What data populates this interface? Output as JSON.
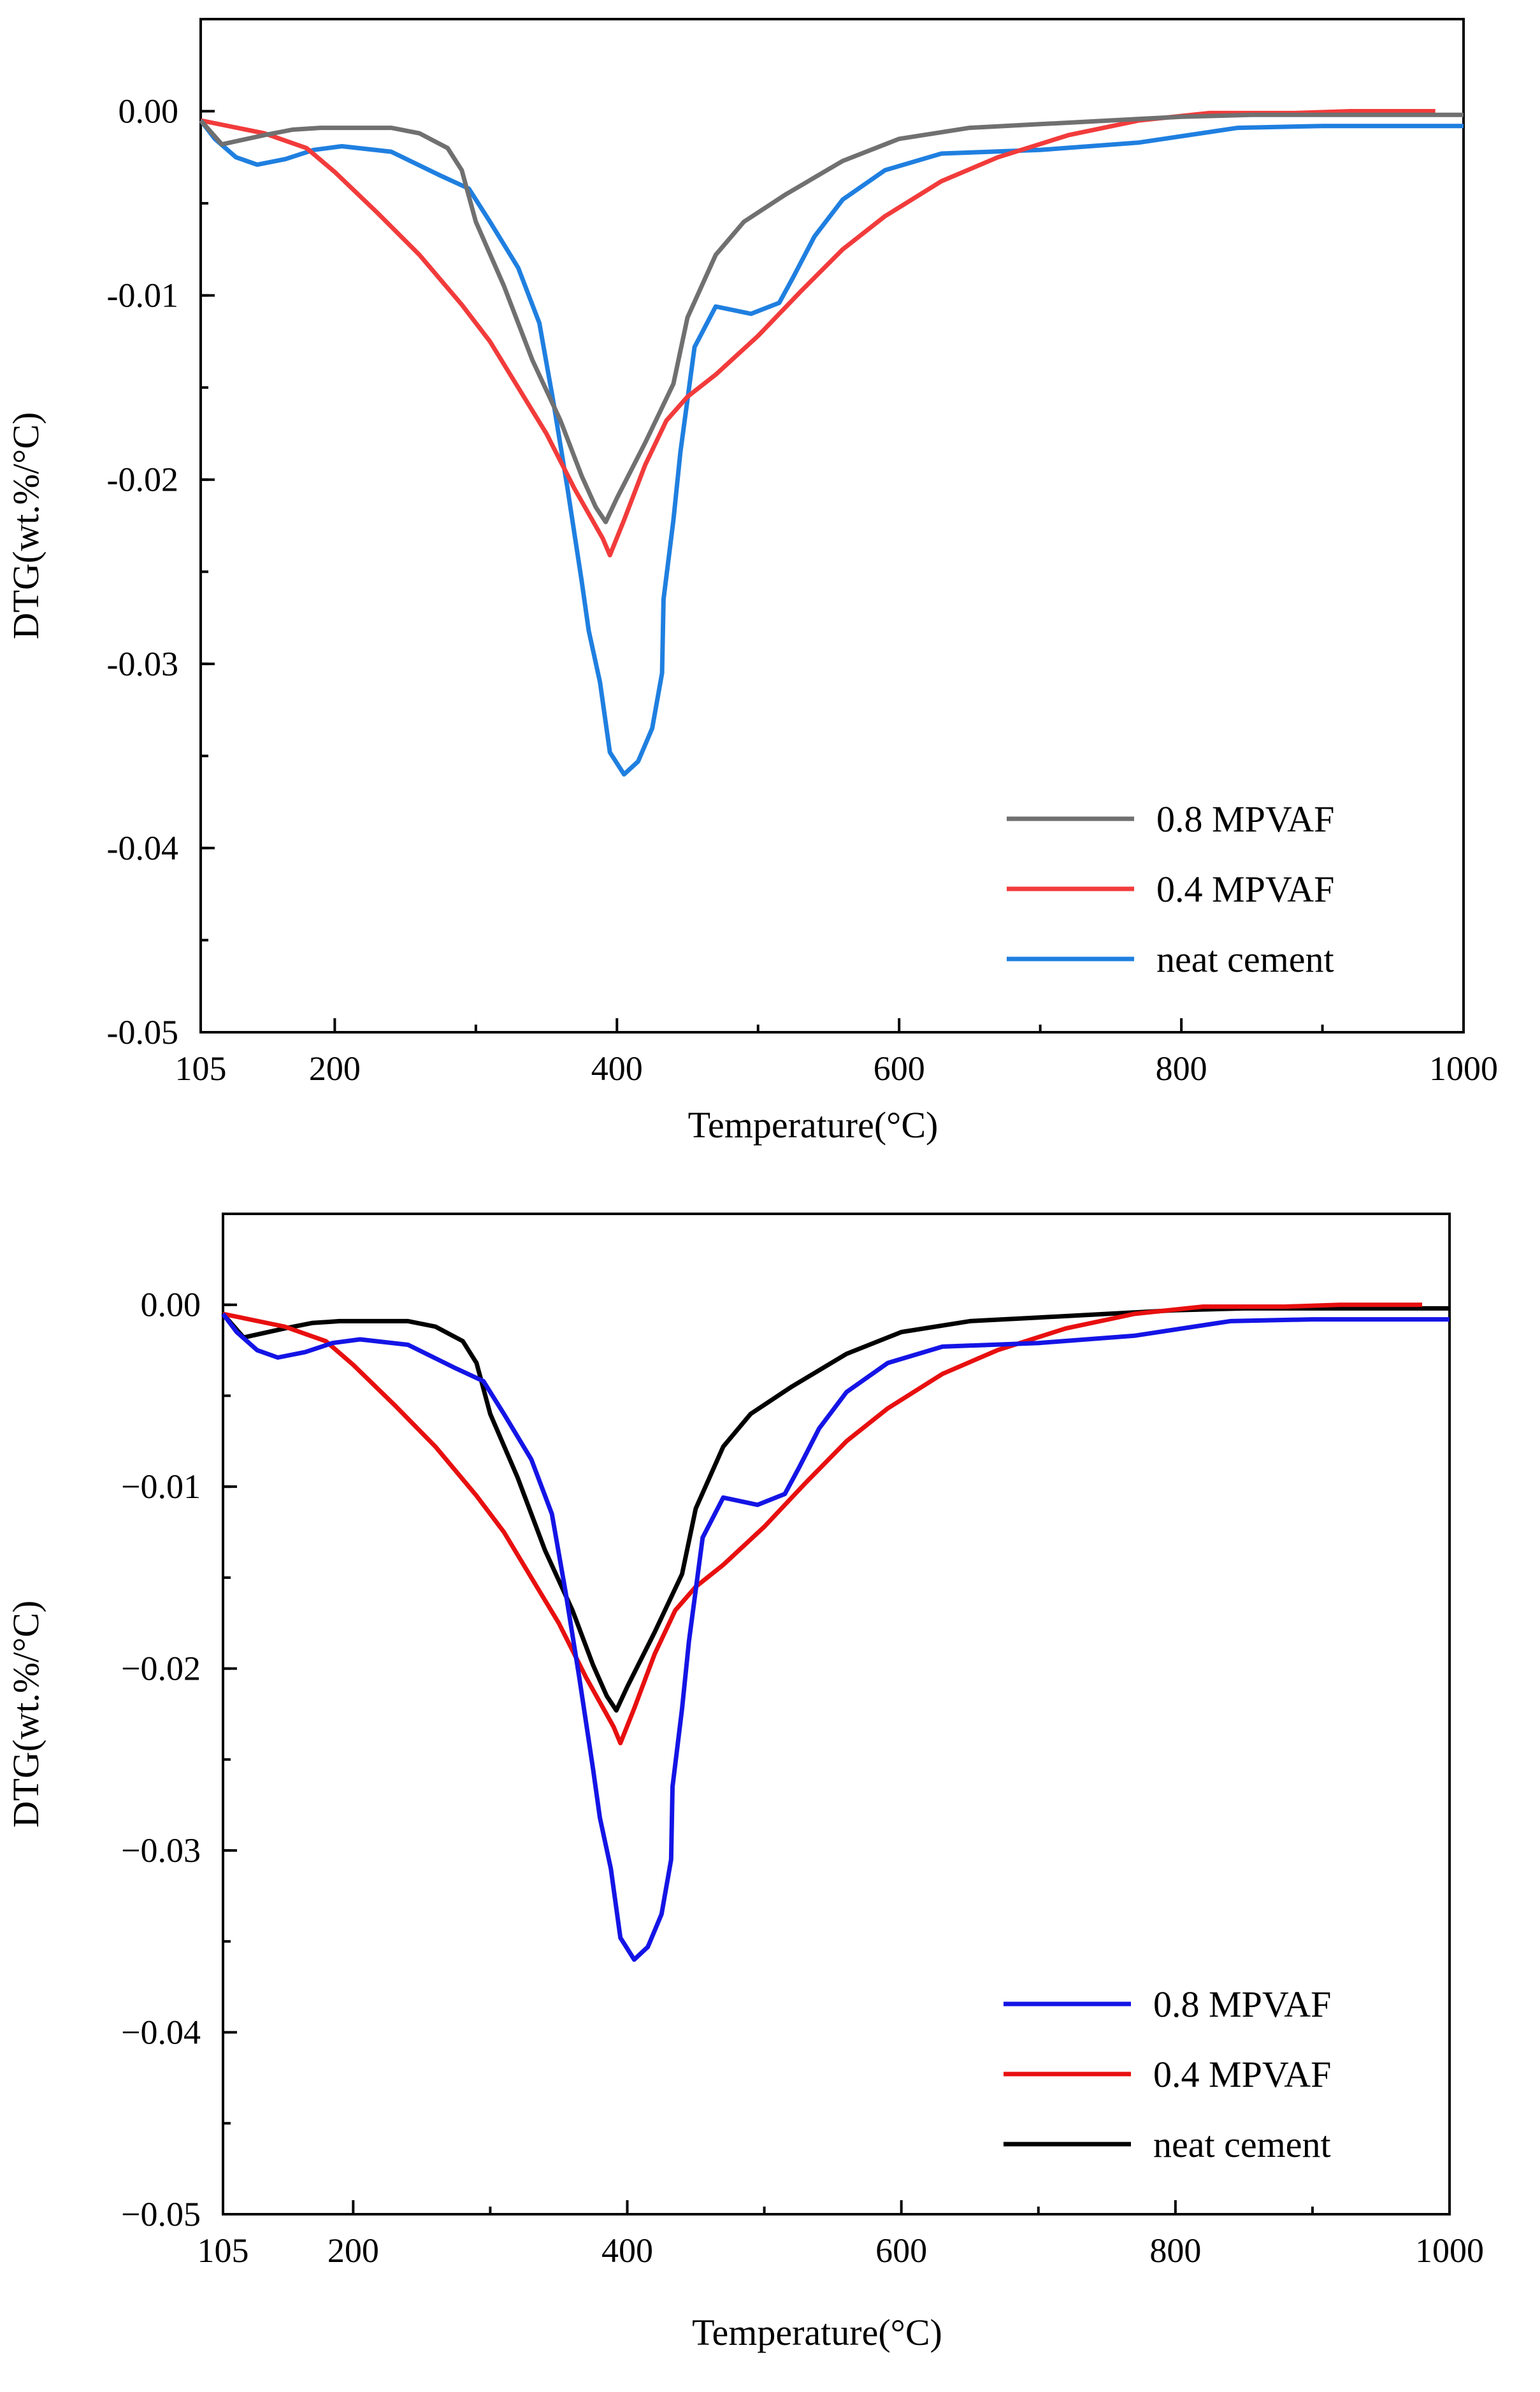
{
  "chart_data": [
    {
      "type": "line",
      "xlabel": "Temperature(°C)",
      "ylabel": "DTG(wt.%/°C)",
      "xlim": [
        105,
        1000
      ],
      "ylim": [
        -0.05,
        0.005
      ],
      "x_ticks": [
        105,
        200,
        400,
        600,
        800,
        1000
      ],
      "x_tick_labels": [
        "105",
        "200",
        "400",
        "600",
        "800",
        "1000"
      ],
      "y_ticks": [
        0,
        -0.01,
        -0.02,
        -0.03,
        -0.04,
        -0.05
      ],
      "y_tick_labels": [
        "0.00",
        "-0.01",
        "-0.02",
        "-0.03",
        "-0.04",
        "-0.05"
      ],
      "grid": false,
      "legend_position": "bottom-right",
      "series": [
        {
          "name": "0.8 MPVAF",
          "color": "#707070",
          "points": [
            [
              105,
              -0.0005
            ],
            [
              120,
              -0.0018
            ],
            [
              150,
              -0.0013
            ],
            [
              170,
              -0.001
            ],
            [
              190,
              -0.0009
            ],
            [
              210,
              -0.0009
            ],
            [
              240,
              -0.0009
            ],
            [
              260,
              -0.0012
            ],
            [
              280,
              -0.002
            ],
            [
              290,
              -0.0032
            ],
            [
              300,
              -0.006
            ],
            [
              320,
              -0.0095
            ],
            [
              340,
              -0.0135
            ],
            [
              360,
              -0.0168
            ],
            [
              375,
              -0.0198
            ],
            [
              385,
              -0.0215
            ],
            [
              392,
              -0.0223
            ],
            [
              400,
              -0.021
            ],
            [
              420,
              -0.018
            ],
            [
              440,
              -0.0148
            ],
            [
              450,
              -0.0112
            ],
            [
              470,
              -0.0078
            ],
            [
              490,
              -0.006
            ],
            [
              520,
              -0.0045
            ],
            [
              560,
              -0.0027
            ],
            [
              600,
              -0.0015
            ],
            [
              650,
              -0.0009
            ],
            [
              700,
              -0.0007
            ],
            [
              750,
              -0.0005
            ],
            [
              800,
              -0.0003
            ],
            [
              850,
              -0.0002
            ],
            [
              900,
              -0.0002
            ],
            [
              1000,
              -0.0002
            ]
          ]
        },
        {
          "name": "0.4 MPVAF",
          "color": "#f23b3b",
          "points": [
            [
              105,
              -0.0005
            ],
            [
              150,
              -0.0012
            ],
            [
              180,
              -0.002
            ],
            [
              200,
              -0.0033
            ],
            [
              230,
              -0.0055
            ],
            [
              260,
              -0.0078
            ],
            [
              290,
              -0.0105
            ],
            [
              310,
              -0.0125
            ],
            [
              330,
              -0.015
            ],
            [
              350,
              -0.0175
            ],
            [
              370,
              -0.0205
            ],
            [
              390,
              -0.0232
            ],
            [
              395,
              -0.0241
            ],
            [
              405,
              -0.0222
            ],
            [
              420,
              -0.0192
            ],
            [
              435,
              -0.0168
            ],
            [
              450,
              -0.0155
            ],
            [
              470,
              -0.0143
            ],
            [
              500,
              -0.0122
            ],
            [
              530,
              -0.0098
            ],
            [
              560,
              -0.0075
            ],
            [
              590,
              -0.0057
            ],
            [
              630,
              -0.0038
            ],
            [
              670,
              -0.0025
            ],
            [
              720,
              -0.0013
            ],
            [
              770,
              -0.0005
            ],
            [
              820,
              -0.0001
            ],
            [
              880,
              -0.0001
            ],
            [
              920,
              0
            ],
            [
              980,
              0
            ]
          ]
        },
        {
          "name": "neat cement",
          "color": "#1f7fe0",
          "points": [
            [
              105,
              -0.0005
            ],
            [
              115,
              -0.0015
            ],
            [
              130,
              -0.0025
            ],
            [
              145,
              -0.0029
            ],
            [
              165,
              -0.0026
            ],
            [
              185,
              -0.0021
            ],
            [
              205,
              -0.0019
            ],
            [
              240,
              -0.0022
            ],
            [
              275,
              -0.0035
            ],
            [
              295,
              -0.0042
            ],
            [
              310,
              -0.006
            ],
            [
              330,
              -0.0085
            ],
            [
              345,
              -0.0115
            ],
            [
              355,
              -0.0158
            ],
            [
              365,
              -0.0205
            ],
            [
              375,
              -0.0255
            ],
            [
              380,
              -0.0282
            ],
            [
              388,
              -0.031
            ],
            [
              395,
              -0.0348
            ],
            [
              405,
              -0.036
            ],
            [
              415,
              -0.0353
            ],
            [
              425,
              -0.0335
            ],
            [
              432,
              -0.0305
            ],
            [
              433,
              -0.0265
            ],
            [
              440,
              -0.0222
            ],
            [
              445,
              -0.0185
            ],
            [
              455,
              -0.0128
            ],
            [
              470,
              -0.0106
            ],
            [
              495,
              -0.011
            ],
            [
              515,
              -0.0104
            ],
            [
              525,
              -0.009
            ],
            [
              540,
              -0.0068
            ],
            [
              560,
              -0.0048
            ],
            [
              590,
              -0.0032
            ],
            [
              630,
              -0.0023
            ],
            [
              700,
              -0.0021
            ],
            [
              770,
              -0.0017
            ],
            [
              840,
              -0.0009
            ],
            [
              900,
              -0.0008
            ],
            [
              1000,
              -0.0008
            ]
          ]
        }
      ]
    },
    {
      "type": "line",
      "xlabel": "Temperature(°C)",
      "ylabel": "DTG(wt.%/°C)",
      "xlim": [
        105,
        1000
      ],
      "ylim": [
        -0.05,
        0.005
      ],
      "x_ticks": [
        105,
        200,
        400,
        600,
        800,
        1000
      ],
      "x_tick_labels": [
        "105",
        "200",
        "400",
        "600",
        "800",
        "1000"
      ],
      "y_ticks": [
        0,
        -0.01,
        -0.02,
        -0.03,
        -0.04,
        -0.05
      ],
      "y_tick_labels": [
        "0.00",
        "−0.01",
        "−0.02",
        "−0.03",
        "−0.04",
        "−0.05"
      ],
      "grid": false,
      "legend_position": "bottom-right",
      "series": [
        {
          "name": "0.8 MPVAF",
          "color": "#1414e6",
          "points": [
            [
              105,
              -0.0005
            ],
            [
              115,
              -0.0015
            ],
            [
              130,
              -0.0025
            ],
            [
              145,
              -0.0029
            ],
            [
              165,
              -0.0026
            ],
            [
              185,
              -0.0021
            ],
            [
              205,
              -0.0019
            ],
            [
              240,
              -0.0022
            ],
            [
              275,
              -0.0035
            ],
            [
              295,
              -0.0042
            ],
            [
              310,
              -0.006
            ],
            [
              330,
              -0.0085
            ],
            [
              345,
              -0.0115
            ],
            [
              355,
              -0.0158
            ],
            [
              365,
              -0.0205
            ],
            [
              375,
              -0.0255
            ],
            [
              380,
              -0.0282
            ],
            [
              388,
              -0.031
            ],
            [
              395,
              -0.0348
            ],
            [
              405,
              -0.036
            ],
            [
              415,
              -0.0353
            ],
            [
              425,
              -0.0335
            ],
            [
              432,
              -0.0305
            ],
            [
              433,
              -0.0265
            ],
            [
              440,
              -0.0222
            ],
            [
              445,
              -0.0185
            ],
            [
              455,
              -0.0128
            ],
            [
              470,
              -0.0106
            ],
            [
              495,
              -0.011
            ],
            [
              515,
              -0.0104
            ],
            [
              525,
              -0.009
            ],
            [
              540,
              -0.0068
            ],
            [
              560,
              -0.0048
            ],
            [
              590,
              -0.0032
            ],
            [
              630,
              -0.0023
            ],
            [
              700,
              -0.0021
            ],
            [
              770,
              -0.0017
            ],
            [
              840,
              -0.0009
            ],
            [
              900,
              -0.0008
            ],
            [
              1000,
              -0.0008
            ]
          ]
        },
        {
          "name": "0.4 MPVAF",
          "color": "#e80f0f",
          "points": [
            [
              105,
              -0.0005
            ],
            [
              150,
              -0.0012
            ],
            [
              180,
              -0.002
            ],
            [
              200,
              -0.0033
            ],
            [
              230,
              -0.0055
            ],
            [
              260,
              -0.0078
            ],
            [
              290,
              -0.0105
            ],
            [
              310,
              -0.0125
            ],
            [
              330,
              -0.015
            ],
            [
              350,
              -0.0175
            ],
            [
              370,
              -0.0205
            ],
            [
              390,
              -0.0232
            ],
            [
              395,
              -0.0241
            ],
            [
              405,
              -0.0222
            ],
            [
              420,
              -0.0192
            ],
            [
              435,
              -0.0168
            ],
            [
              450,
              -0.0155
            ],
            [
              470,
              -0.0143
            ],
            [
              500,
              -0.0122
            ],
            [
              530,
              -0.0098
            ],
            [
              560,
              -0.0075
            ],
            [
              590,
              -0.0057
            ],
            [
              630,
              -0.0038
            ],
            [
              670,
              -0.0025
            ],
            [
              720,
              -0.0013
            ],
            [
              770,
              -0.0005
            ],
            [
              820,
              -0.0001
            ],
            [
              880,
              -0.0001
            ],
            [
              920,
              0
            ],
            [
              980,
              0
            ]
          ]
        },
        {
          "name": "neat cement",
          "color": "#000000",
          "points": [
            [
              105,
              -0.0005
            ],
            [
              120,
              -0.0018
            ],
            [
              150,
              -0.0013
            ],
            [
              170,
              -0.001
            ],
            [
              190,
              -0.0009
            ],
            [
              210,
              -0.0009
            ],
            [
              240,
              -0.0009
            ],
            [
              260,
              -0.0012
            ],
            [
              280,
              -0.002
            ],
            [
              290,
              -0.0032
            ],
            [
              300,
              -0.006
            ],
            [
              320,
              -0.0095
            ],
            [
              340,
              -0.0135
            ],
            [
              360,
              -0.0168
            ],
            [
              375,
              -0.0198
            ],
            [
              385,
              -0.0215
            ],
            [
              392,
              -0.0223
            ],
            [
              400,
              -0.021
            ],
            [
              420,
              -0.018
            ],
            [
              440,
              -0.0148
            ],
            [
              450,
              -0.0112
            ],
            [
              470,
              -0.0078
            ],
            [
              490,
              -0.006
            ],
            [
              520,
              -0.0045
            ],
            [
              560,
              -0.0027
            ],
            [
              600,
              -0.0015
            ],
            [
              650,
              -0.0009
            ],
            [
              700,
              -0.0007
            ],
            [
              750,
              -0.0005
            ],
            [
              800,
              -0.0003
            ],
            [
              850,
              -0.0002
            ],
            [
              900,
              -0.0002
            ],
            [
              1000,
              -0.0002
            ]
          ]
        }
      ]
    }
  ]
}
